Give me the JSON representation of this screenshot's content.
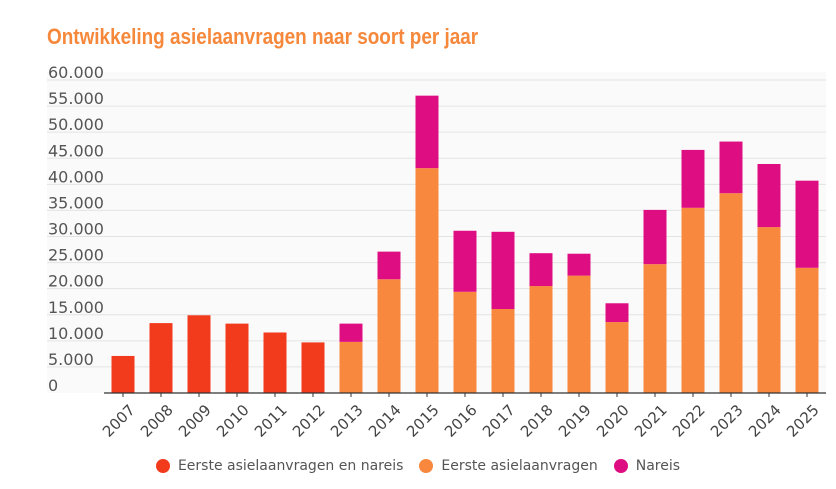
{
  "chart_data": {
    "type": "bar",
    "stacked": true,
    "title": "Ontwikkeling asielaanvragen naar soort per jaar",
    "xlabel": "",
    "ylabel": "",
    "ylim": [
      0,
      60000
    ],
    "yticks": [
      "0",
      "5.000",
      "10.000",
      "15.000",
      "20.000",
      "25.000",
      "30.000",
      "35.000",
      "40.000",
      "45.000",
      "50.000",
      "55.000",
      "60.000"
    ],
    "grid": true,
    "legend_position": "bottom",
    "categories": [
      "2007",
      "2008",
      "2009",
      "2010",
      "2011",
      "2012",
      "2013",
      "2014",
      "2015",
      "2016",
      "2017",
      "2018",
      "2019",
      "2020",
      "2021",
      "2022",
      "2023",
      "2024",
      "2025"
    ],
    "series": [
      {
        "name": "Eerste asielaanvragen en nareis",
        "color": "#f23a1d",
        "values": [
          7100,
          13400,
          14900,
          13300,
          11600,
          9700,
          null,
          null,
          null,
          null,
          null,
          null,
          null,
          null,
          null,
          null,
          null,
          null,
          null
        ]
      },
      {
        "name": "Eerste asielaanvragen",
        "color": "#f7883d",
        "values": [
          null,
          null,
          null,
          null,
          null,
          null,
          9800,
          21800,
          43100,
          19400,
          16100,
          20500,
          22500,
          13600,
          24700,
          35500,
          38300,
          31800,
          24000
        ]
      },
      {
        "name": "Nareis",
        "color": "#df0d82",
        "values": [
          null,
          null,
          null,
          null,
          null,
          null,
          3500,
          5300,
          13900,
          11700,
          14800,
          6300,
          4200,
          3600,
          10400,
          11100,
          9900,
          12100,
          16700
        ]
      }
    ]
  }
}
